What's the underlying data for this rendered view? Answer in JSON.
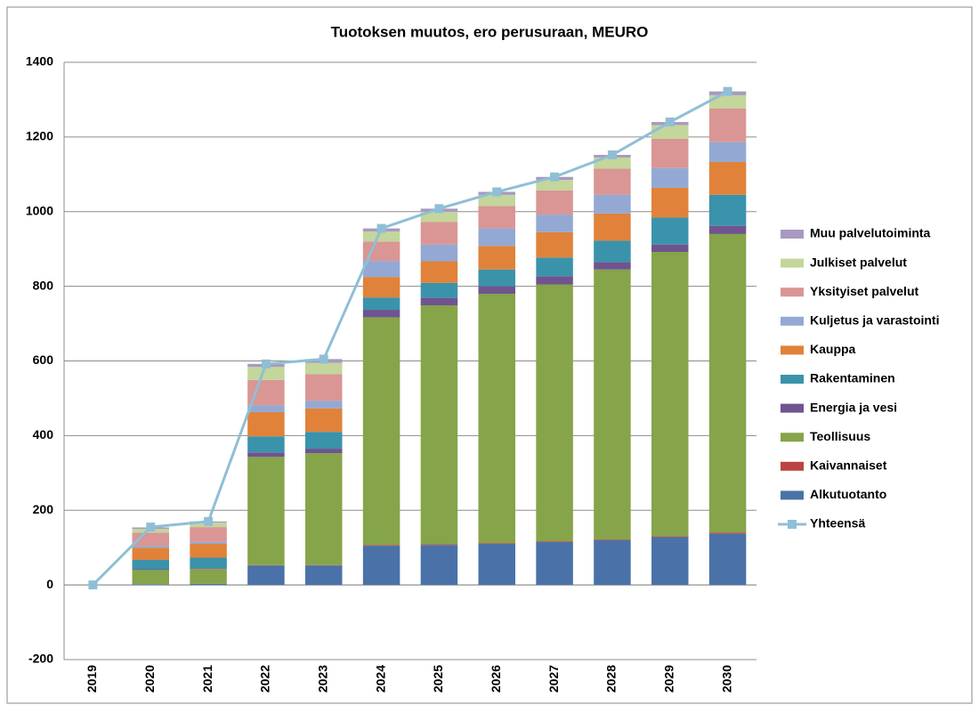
{
  "chart_data": {
    "type": "bar",
    "stacked": true,
    "title": "Tuotoksen muutos, ero perusuraan, MEURO",
    "categories": [
      "2019",
      "2020",
      "2021",
      "2022",
      "2023",
      "2024",
      "2025",
      "2026",
      "2027",
      "2028",
      "2029",
      "2030"
    ],
    "ylim": [
      -200,
      1400
    ],
    "yticks": [
      -200,
      0,
      200,
      400,
      600,
      800,
      1000,
      1200,
      1400
    ],
    "grid": true,
    "legend": "right",
    "series": [
      {
        "name": "Alkutuotanto",
        "color": "#4a72a8",
        "values": [
          0,
          2,
          3,
          52,
          52,
          105,
          107,
          110,
          115,
          120,
          128,
          137
        ]
      },
      {
        "name": "Kaivannaiset",
        "color": "#b94442",
        "values": [
          0,
          0,
          0,
          1,
          1,
          2,
          2,
          2,
          2,
          2,
          2,
          3
        ]
      },
      {
        "name": "Teollisuus",
        "color": "#86a44a",
        "values": [
          0,
          38,
          40,
          290,
          300,
          610,
          640,
          668,
          688,
          723,
          762,
          800
        ]
      },
      {
        "name": "Energia ja vesi",
        "color": "#6f548f",
        "values": [
          0,
          2,
          2,
          12,
          12,
          20,
          20,
          20,
          22,
          20,
          20,
          22
        ]
      },
      {
        "name": "Rakentaminen",
        "color": "#3a93ab",
        "values": [
          0,
          25,
          28,
          43,
          45,
          33,
          40,
          45,
          50,
          57,
          72,
          83
        ]
      },
      {
        "name": "Kauppa",
        "color": "#e0823a",
        "values": [
          0,
          33,
          37,
          65,
          63,
          55,
          58,
          63,
          68,
          73,
          80,
          88
        ]
      },
      {
        "name": "Kuljetus ja varastointi",
        "color": "#93a9d3",
        "values": [
          0,
          5,
          5,
          18,
          20,
          43,
          45,
          47,
          47,
          50,
          53,
          53
        ]
      },
      {
        "name": "Yksityiset palvelut",
        "color": "#d99694",
        "values": [
          0,
          35,
          40,
          68,
          72,
          52,
          60,
          60,
          65,
          70,
          78,
          90
        ]
      },
      {
        "name": "Julkiset palvelut",
        "color": "#c3d69b",
        "values": [
          0,
          10,
          12,
          35,
          30,
          27,
          28,
          30,
          28,
          30,
          37,
          36
        ]
      },
      {
        "name": "Muu palvelutoiminta",
        "color": "#a899c0",
        "values": [
          0,
          4,
          3,
          8,
          10,
          8,
          8,
          8,
          8,
          7,
          8,
          10
        ]
      },
      {
        "name": "Yhteensä",
        "type": "line",
        "color": "#8fbfd6",
        "values": [
          0,
          155,
          170,
          592,
          605,
          955,
          1008,
          1053,
          1093,
          1152,
          1240,
          1322
        ]
      }
    ]
  }
}
